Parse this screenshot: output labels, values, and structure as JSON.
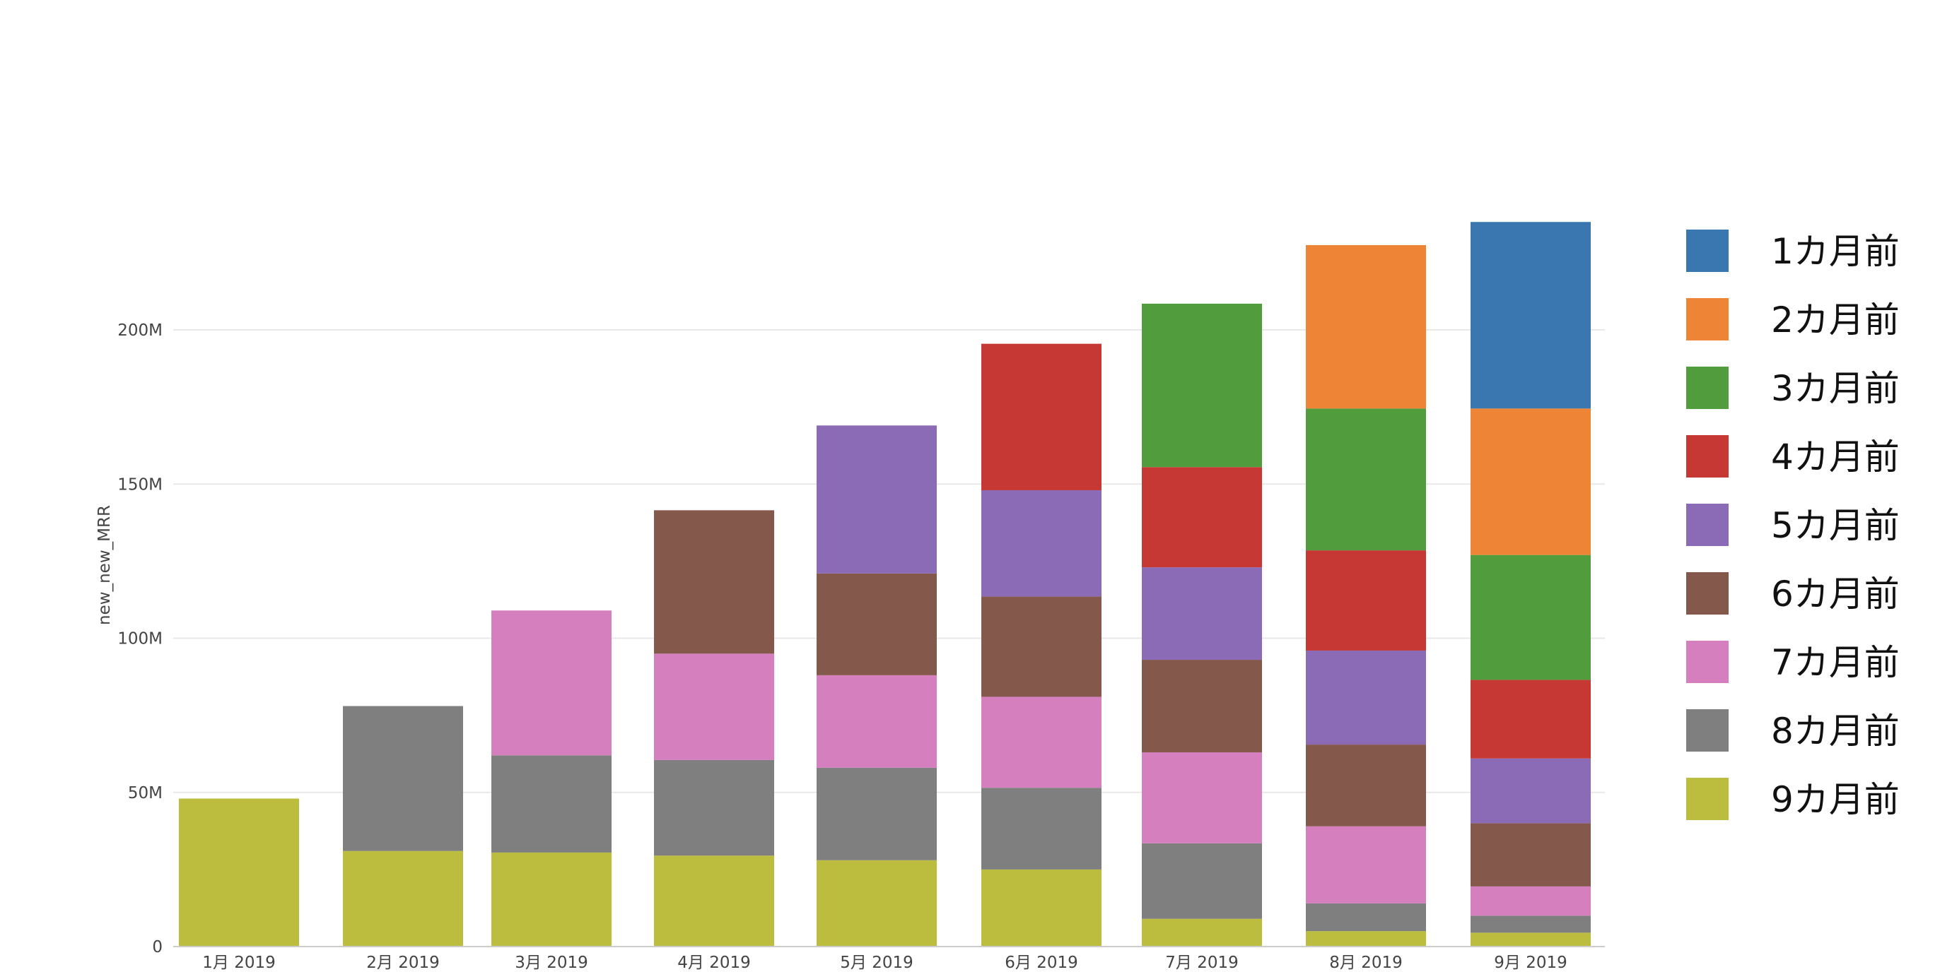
{
  "chart_data": {
    "type": "bar",
    "stacked": true,
    "title": "",
    "xlabel": "",
    "ylabel": "new_new_MRR",
    "ylim": [
      0,
      240000000
    ],
    "yticks": [
      0,
      50000000,
      100000000,
      150000000,
      200000000
    ],
    "ytick_labels": [
      "0",
      "50M",
      "100M",
      "150M",
      "200M"
    ],
    "grid": true,
    "legend_position": "right",
    "categories": [
      "1月 2019",
      "2月 2019",
      "3月 2019",
      "4月 2019",
      "5月 2019",
      "6月 2019",
      "7月 2019",
      "8月 2019",
      "9月 2019"
    ],
    "series": [
      {
        "name": "9カ月前",
        "color": "#bcbd3f",
        "values": [
          48000000,
          31000000,
          30500000,
          29500000,
          28000000,
          25000000,
          9000000,
          5000000,
          4500000
        ]
      },
      {
        "name": "8カ月前",
        "color": "#7f7f7f",
        "values": [
          0,
          47000000,
          31500000,
          31000000,
          30000000,
          26500000,
          24500000,
          9000000,
          5500000
        ]
      },
      {
        "name": "7カ月前",
        "color": "#d57fbe",
        "values": [
          0,
          0,
          47000000,
          34500000,
          30000000,
          29500000,
          29500000,
          25000000,
          9500000
        ]
      },
      {
        "name": "6カ月前",
        "color": "#85584c",
        "values": [
          0,
          0,
          0,
          46500000,
          33000000,
          32500000,
          30000000,
          26500000,
          20500000
        ]
      },
      {
        "name": "5カ月前",
        "color": "#8c6bb6",
        "values": [
          0,
          0,
          0,
          0,
          48000000,
          34500000,
          30000000,
          30500000,
          21000000
        ]
      },
      {
        "name": "4カ月前",
        "color": "#c53833",
        "values": [
          0,
          0,
          0,
          0,
          0,
          47500000,
          32500000,
          32500000,
          25500000
        ]
      },
      {
        "name": "3カ月前",
        "color": "#519d3d",
        "values": [
          0,
          0,
          0,
          0,
          0,
          0,
          53000000,
          46000000,
          40500000
        ]
      },
      {
        "name": "2カ月前",
        "color": "#ee8435",
        "values": [
          0,
          0,
          0,
          0,
          0,
          0,
          0,
          53000000,
          47500000
        ]
      },
      {
        "name": "1カ月前",
        "color": "#3a77b0",
        "values": [
          0,
          0,
          0,
          0,
          0,
          0,
          0,
          0,
          60500000
        ]
      }
    ]
  }
}
